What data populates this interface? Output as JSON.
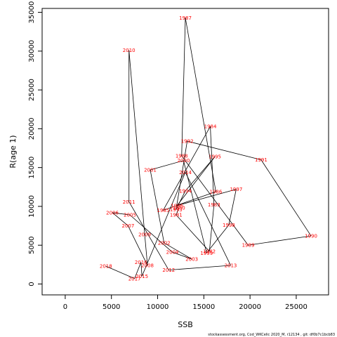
{
  "chart_data": {
    "type": "line",
    "title": "",
    "xlabel": "SSB",
    "ylabel": "R(age 1)",
    "xlim": [
      -2500,
      28500
    ],
    "ylim": [
      -1400,
      35500
    ],
    "xticks": [
      0,
      5000,
      10000,
      15000,
      20000,
      25000
    ],
    "yticks": [
      0,
      5000,
      10000,
      15000,
      20000,
      25000,
      30000,
      35000
    ],
    "grid": false,
    "label_color": "#ff0000",
    "line_color": "#000000",
    "points": [
      {
        "year": "1980",
        "x": 12300,
        "y": 9800
      },
      {
        "year": "1981",
        "x": 12000,
        "y": 8900
      },
      {
        "year": "1982",
        "x": 15600,
        "y": 4200
      },
      {
        "year": "1983",
        "x": 16100,
        "y": 10200
      },
      {
        "year": "1984",
        "x": 15700,
        "y": 20300
      },
      {
        "year": "1985",
        "x": 10600,
        "y": 9500
      },
      {
        "year": "1986",
        "x": 16300,
        "y": 11900
      },
      {
        "year": "1987",
        "x": 13000,
        "y": 34300
      },
      {
        "year": "1988",
        "x": 12600,
        "y": 16500
      },
      {
        "year": "1989",
        "x": 19800,
        "y": 5000
      },
      {
        "year": "1990",
        "x": 26600,
        "y": 6200
      },
      {
        "year": "1991",
        "x": 21200,
        "y": 16000
      },
      {
        "year": "1992",
        "x": 13200,
        "y": 18400
      },
      {
        "year": "1993",
        "x": 12000,
        "y": 9600
      },
      {
        "year": "1994",
        "x": 13000,
        "y": 12000
      },
      {
        "year": "1995",
        "x": 16200,
        "y": 16400
      },
      {
        "year": "1996",
        "x": 12100,
        "y": 10100
      },
      {
        "year": "1997",
        "x": 18500,
        "y": 12200
      },
      {
        "year": "1998",
        "x": 17700,
        "y": 7600
      },
      {
        "year": "1999",
        "x": 15300,
        "y": 4000
      },
      {
        "year": "2000",
        "x": 12800,
        "y": 15900
      },
      {
        "year": "2001",
        "x": 9200,
        "y": 14700
      },
      {
        "year": "2002",
        "x": 10700,
        "y": 5300
      },
      {
        "year": "2003",
        "x": 13700,
        "y": 3200
      },
      {
        "year": "2004",
        "x": 11600,
        "y": 4100
      },
      {
        "year": "2005",
        "x": 7000,
        "y": 8900
      },
      {
        "year": "2006",
        "x": 5100,
        "y": 9200
      },
      {
        "year": "2007",
        "x": 6800,
        "y": 7500
      },
      {
        "year": "2008",
        "x": 8900,
        "y": 2400
      },
      {
        "year": "2009",
        "x": 8600,
        "y": 6400
      },
      {
        "year": "2010",
        "x": 6900,
        "y": 30100
      },
      {
        "year": "2011",
        "x": 6900,
        "y": 10600
      },
      {
        "year": "2012",
        "x": 11200,
        "y": 1800
      },
      {
        "year": "2013",
        "x": 17900,
        "y": 2400
      },
      {
        "year": "2014",
        "x": 13000,
        "y": 14400
      },
      {
        "year": "2015",
        "x": 8300,
        "y": 1000
      },
      {
        "year": "2016",
        "x": 8200,
        "y": 2800
      },
      {
        "year": "2017",
        "x": 7500,
        "y": 700
      },
      {
        "year": "2018",
        "x": 4400,
        "y": 2300
      }
    ]
  },
  "footer_text": "stockassessment.org,  Cod_WKCelic  2020_M, r12134 ,  git: df0b7c1bcb83"
}
